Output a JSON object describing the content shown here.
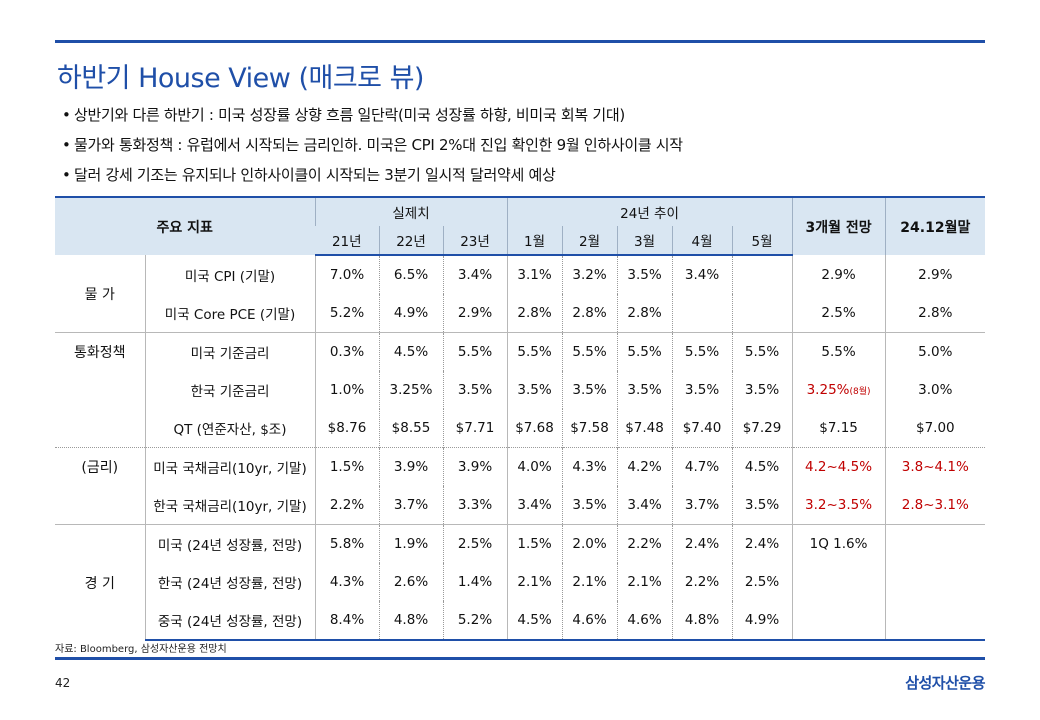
{
  "title": "하반기 House View (매크로 뷰)",
  "bullets": [
    "상반기와 다른 하반기 : 미국 성장률 상향 흐름 일단락(미국 성장률 하향, 비미국 회복 기대)",
    "물가와 통화정책 : 유럽에서 시작되는 금리인하. 미국은 CPI 2%대 진입 확인한 9월 인하사이클 시작",
    "달러 강세 기조는 유지되나 인하사이클이 시작되는 3분기 일시적 달러약세 예상"
  ],
  "table": {
    "header": {
      "indicator": "주요 지표",
      "actual": "실제치",
      "trend": "24년 추이",
      "forecast3m": "3개월 전망",
      "yearend": "24.12월말",
      "years": [
        "21년",
        "22년",
        "23년"
      ],
      "months": [
        "1월",
        "2월",
        "3월",
        "4월",
        "5월"
      ]
    },
    "groups": {
      "price": "물  가",
      "policy": "통화정책",
      "rates": "(금리)",
      "economy": "경  기"
    },
    "rows": [
      {
        "label": "미국 CPI (기말)",
        "y21": "7.0%",
        "y22": "6.5%",
        "y23": "3.4%",
        "m1": "3.1%",
        "m2": "3.2%",
        "m3": "3.5%",
        "m4": "3.4%",
        "m5": "",
        "f3m": "2.9%",
        "ye": "2.9%"
      },
      {
        "label": "미국 Core PCE (기말)",
        "y21": "5.2%",
        "y22": "4.9%",
        "y23": "2.9%",
        "m1": "2.8%",
        "m2": "2.8%",
        "m3": "2.8%",
        "m4": "",
        "m5": "",
        "f3m": "2.5%",
        "ye": "2.8%"
      },
      {
        "label": "미국 기준금리",
        "y21": "0.3%",
        "y22": "4.5%",
        "y23": "5.5%",
        "m1": "5.5%",
        "m2": "5.5%",
        "m3": "5.5%",
        "m4": "5.5%",
        "m5": "5.5%",
        "f3m": "5.5%",
        "ye": "5.0%"
      },
      {
        "label": "한국 기준금리",
        "y21": "1.0%",
        "y22": "3.25%",
        "y23": "3.5%",
        "m1": "3.5%",
        "m2": "3.5%",
        "m3": "3.5%",
        "m4": "3.5%",
        "m5": "3.5%",
        "f3m": "3.25%",
        "f3m_note": "(8월)",
        "ye": "3.0%"
      },
      {
        "label": "QT (연준자산, $조)",
        "y21": "$8.76",
        "y22": "$8.55",
        "y23": "$7.71",
        "m1": "$7.68",
        "m2": "$7.58",
        "m3": "$7.48",
        "m4": "$7.40",
        "m5": "$7.29",
        "f3m": "$7.15",
        "ye": "$7.00"
      },
      {
        "label": "미국 국채금리(10yr, 기말)",
        "y21": "1.5%",
        "y22": "3.9%",
        "y23": "3.9%",
        "m1": "4.0%",
        "m2": "4.3%",
        "m3": "4.2%",
        "m4": "4.7%",
        "m5": "4.5%",
        "f3m": "4.2~4.5%",
        "ye": "3.8~4.1%"
      },
      {
        "label": "한국 국채금리(10yr, 기말)",
        "y21": "2.2%",
        "y22": "3.7%",
        "y23": "3.3%",
        "m1": "3.4%",
        "m2": "3.5%",
        "m3": "3.4%",
        "m4": "3.7%",
        "m5": "3.5%",
        "f3m": "3.2~3.5%",
        "ye": "2.8~3.1%"
      },
      {
        "label": "미국 (24년 성장률, 전망)",
        "y21": "5.8%",
        "y22": "1.9%",
        "y23": "2.5%",
        "m1": "1.5%",
        "m2": "2.0%",
        "m3": "2.2%",
        "m4": "2.4%",
        "m5": "2.4%",
        "f3m": "1Q 1.6%",
        "ye": ""
      },
      {
        "label": "한국 (24년 성장률, 전망)",
        "y21": "4.3%",
        "y22": "2.6%",
        "y23": "1.4%",
        "m1": "2.1%",
        "m2": "2.1%",
        "m3": "2.1%",
        "m4": "2.2%",
        "m5": "2.5%",
        "f3m": "",
        "ye": ""
      },
      {
        "label": "중국 (24년 성장률, 전망)",
        "y21": "8.4%",
        "y22": "4.8%",
        "y23": "5.2%",
        "m1": "4.5%",
        "m2": "4.6%",
        "m3": "4.6%",
        "m4": "4.8%",
        "m5": "4.9%",
        "f3m": "",
        "ye": ""
      }
    ]
  },
  "source": "자료: Bloomberg, 삼성자산운용 전망치",
  "page_number": "42",
  "logo_text": "삼성자산운용",
  "colors": {
    "accent": "#1f4fa8",
    "header_bg": "#d9e6f2",
    "highlight": "#c00000"
  }
}
